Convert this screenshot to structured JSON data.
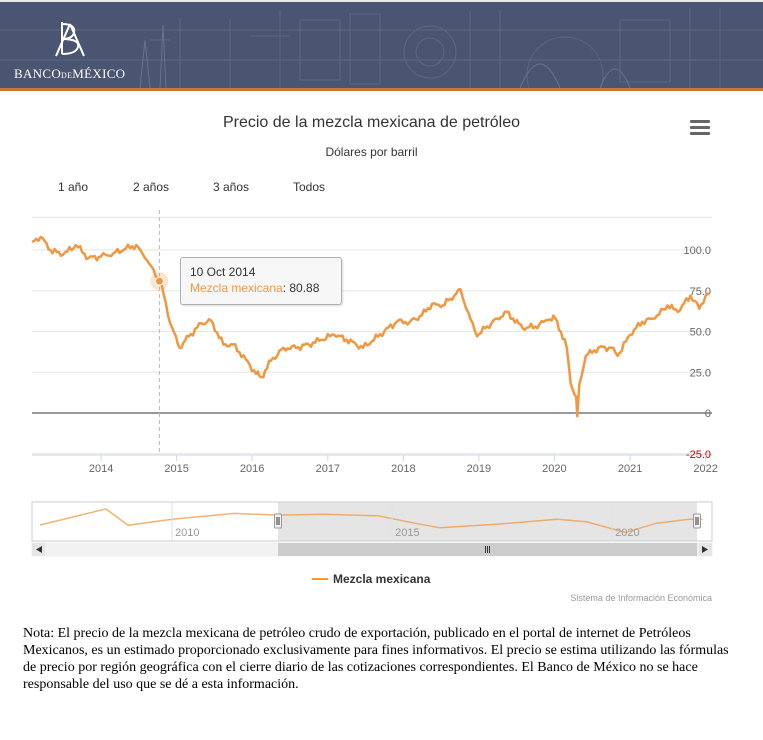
{
  "header": {
    "logo_word_1": "BANCO",
    "logo_word_de": "DE",
    "logo_word_2": "MÉXICO",
    "brand_colors": {
      "banner": "#4a5572",
      "accent": "#c9772e"
    }
  },
  "range_selector": {
    "buttons": [
      "1 año",
      "2 años",
      "3 años",
      "Todos"
    ]
  },
  "tooltip": {
    "date": "10 Oct 2014",
    "series": "Mezcla mexicana",
    "value": "80.88"
  },
  "legend_label": "Mezcla mexicana",
  "credits": "Sistema de Información Económica",
  "note": "Nota: El precio de la mezcla mexicana de petróleo crudo de exportación, publicado en el portal de internet de Petróleos Mexicanos, es un estimado proporcionado exclusivamente para fines informativos. El precio se estima utilizando las fórmulas de precio por región geográfica con el cierre diario de las cotizaciones correspondientes. El Banco de México no se hace responsable del uso que se dé a esta información.",
  "menu_icon": "hamburger-menu-icon",
  "navigator": {
    "tick_labels": [
      "2010",
      "2015",
      "2020"
    ],
    "scroll_icons": [
      "scroll-left-icon",
      "scroll-grip-icon",
      "scroll-right-icon"
    ]
  },
  "chart_data": {
    "type": "line",
    "title": "Precio de la mezcla mexicana de petróleo",
    "subtitle": "Dólares por barril",
    "xlabel": "",
    "ylabel": "",
    "x_ticks": [
      "2014",
      "2015",
      "2016",
      "2017",
      "2018",
      "2019",
      "2020",
      "2021",
      "2022"
    ],
    "y_ticks": [
      "100.0",
      "75.0",
      "50.0",
      "25.0",
      "0",
      "-25.0"
    ],
    "ylim": [
      -25,
      120
    ],
    "grid": true,
    "legend": "bottom-center",
    "series": [
      {
        "name": "Mezcla mexicana",
        "color": "#f09840",
        "x": [
          "2013-02-01",
          "2013-03-15",
          "2013-05-01",
          "2013-07-01",
          "2013-09-01",
          "2013-11-01",
          "2014-01-01",
          "2014-03-01",
          "2014-05-01",
          "2014-06-20",
          "2014-08-01",
          "2014-09-01",
          "2014-10-10",
          "2014-11-01",
          "2014-12-01",
          "2015-01-15",
          "2015-03-01",
          "2015-05-01",
          "2015-06-15",
          "2015-08-15",
          "2015-10-01",
          "2015-12-01",
          "2016-01-20",
          "2016-02-15",
          "2016-04-01",
          "2016-06-01",
          "2016-08-01",
          "2016-10-01",
          "2016-12-01",
          "2017-02-01",
          "2017-04-01",
          "2017-06-20",
          "2017-08-01",
          "2017-10-01",
          "2017-12-01",
          "2018-02-01",
          "2018-04-01",
          "2018-05-20",
          "2018-07-01",
          "2018-08-15",
          "2018-10-04",
          "2018-11-01",
          "2018-12-24",
          "2019-02-01",
          "2019-04-01",
          "2019-05-15",
          "2019-06-15",
          "2019-08-01",
          "2019-10-01",
          "2019-12-01",
          "2020-01-06",
          "2020-02-01",
          "2020-03-01",
          "2020-03-20",
          "2020-04-15",
          "2020-04-21",
          "2020-05-01",
          "2020-06-01",
          "2020-08-01",
          "2020-10-01",
          "2020-11-01",
          "2021-01-01",
          "2021-03-01",
          "2021-05-01",
          "2021-07-01",
          "2021-08-20",
          "2021-10-20",
          "2021-12-01",
          "2022-01-01",
          "2022-01-20"
        ],
        "values": [
          105,
          108,
          100,
          97,
          103,
          95,
          96,
          98,
          101,
          103,
          95,
          90,
          80.88,
          72,
          55,
          40,
          47,
          55,
          57,
          42,
          42,
          33,
          24,
          22,
          32,
          40,
          40,
          42,
          45,
          48,
          45,
          40,
          44,
          50,
          56,
          56,
          60,
          67,
          65,
          70,
          76,
          64,
          47,
          52,
          58,
          62,
          58,
          52,
          53,
          57,
          58,
          50,
          40,
          18,
          10,
          -2,
          18,
          35,
          40,
          40,
          35,
          48,
          56,
          58,
          66,
          62,
          72,
          64,
          72,
          73
        ]
      }
    ]
  }
}
